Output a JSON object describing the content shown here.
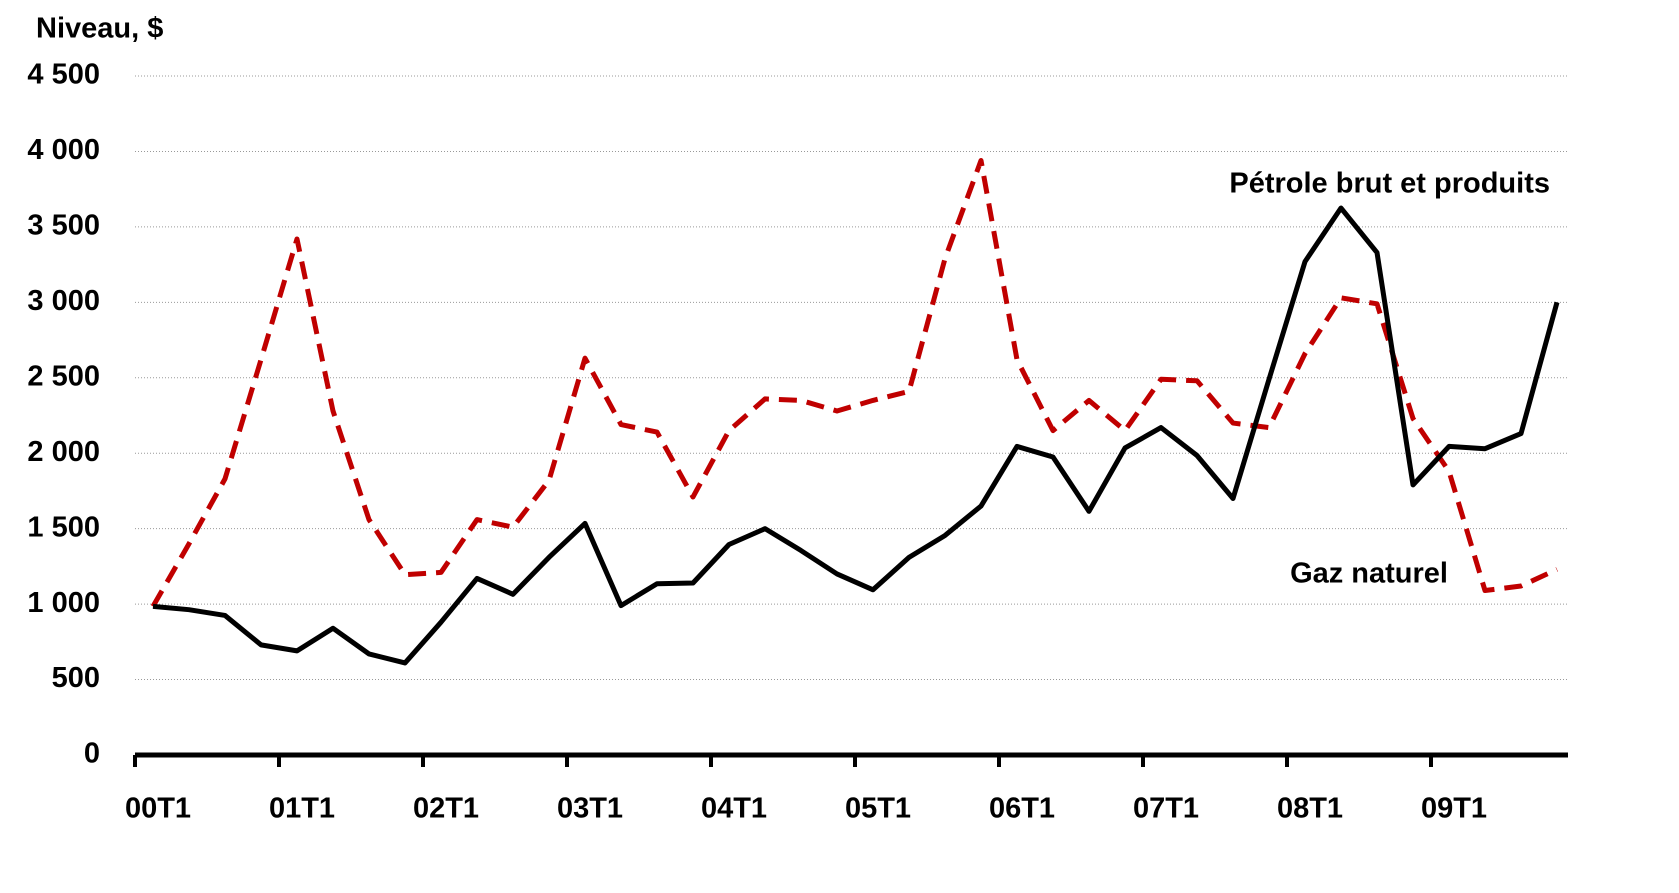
{
  "chart_data": {
    "type": "line",
    "y_axis_label": "Niveau, $",
    "categories": [
      "00T1",
      null,
      null,
      null,
      "01T1",
      null,
      null,
      null,
      "02T1",
      null,
      null,
      null,
      "03T1",
      null,
      null,
      null,
      "04T1",
      null,
      null,
      null,
      "05T1",
      null,
      null,
      null,
      "06T1",
      null,
      null,
      null,
      "07T1",
      null,
      null,
      null,
      "08T1",
      null,
      null,
      null,
      "09T1",
      null,
      null,
      null
    ],
    "series": [
      {
        "name": "Pétrole brut et produits",
        "color": "#000000",
        "dash": false,
        "values": [
          985,
          963,
          925,
          730,
          690,
          840,
          670,
          610,
          880,
          1170,
          1065,
          1310,
          1535,
          990,
          1135,
          1140,
          1395,
          1500,
          1355,
          1200,
          1095,
          1310,
          1455,
          1650,
          2045,
          1975,
          1615,
          2035,
          2170,
          1985,
          1700,
          2490,
          3270,
          3625,
          3330,
          1790,
          2045,
          2030,
          2130,
          3000
        ]
      },
      {
        "name": "Gaz naturel",
        "color": "#c00000",
        "dash": true,
        "values": [
          985,
          1400,
          1830,
          2620,
          3420,
          2280,
          1560,
          1195,
          1210,
          1560,
          1510,
          1820,
          2630,
          2190,
          2140,
          1710,
          2150,
          2360,
          2350,
          2280,
          2350,
          2410,
          3290,
          3940,
          2620,
          2150,
          2350,
          2150,
          2490,
          2480,
          2200,
          2170,
          2660,
          3030,
          2990,
          2230,
          1880,
          1090,
          1120,
          1230
        ]
      }
    ],
    "ylim": [
      0,
      4500
    ],
    "yticks": [
      0,
      500,
      {
        "value": 1000,
        "label": "1 000"
      },
      {
        "value": 1500,
        "label": "1 500"
      },
      {
        "value": 2000,
        "label": "2 000"
      },
      {
        "value": 2500,
        "label": "2 500"
      },
      {
        "value": 3000,
        "label": "3 000"
      },
      {
        "value": 3500,
        "label": "3 500"
      },
      {
        "value": 4000,
        "label": "4 000"
      },
      {
        "value": 4500,
        "label": "4 500"
      }
    ],
    "grid": true
  }
}
